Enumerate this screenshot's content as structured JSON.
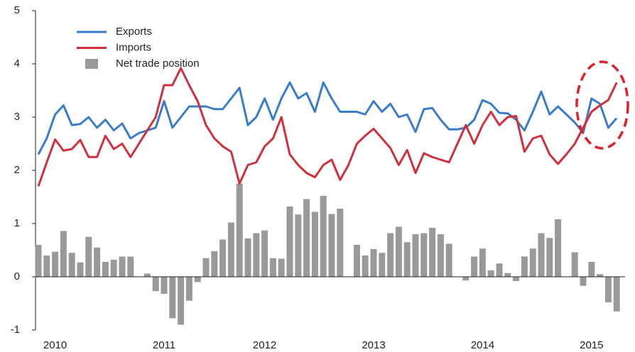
{
  "chart_data": {
    "type": "bar-line",
    "categories": [
      null,
      null,
      "2010",
      null,
      null,
      null,
      null,
      null,
      null,
      null,
      null,
      null,
      null,
      null,
      null,
      "2011",
      null,
      null,
      null,
      null,
      null,
      null,
      null,
      null,
      null,
      null,
      null,
      "2012",
      null,
      null,
      null,
      null,
      null,
      null,
      null,
      null,
      null,
      null,
      null,
      null,
      "2013",
      null,
      null,
      null,
      null,
      null,
      null,
      null,
      null,
      null,
      null,
      null,
      null,
      "2014",
      null,
      null,
      null,
      null,
      null,
      null,
      null,
      null,
      null,
      null,
      null,
      null,
      "2015",
      null,
      null,
      null
    ],
    "series": [
      {
        "name": "Net trade position",
        "kind": "bar",
        "color": "#999999",
        "values": [
          0.6,
          0.4,
          0.47,
          0.86,
          0.45,
          0.27,
          0.75,
          0.55,
          0.28,
          0.32,
          0.38,
          0.38,
          0,
          0.06,
          -0.27,
          -0.32,
          -0.78,
          -0.9,
          -0.45,
          -0.1,
          0.35,
          0.48,
          0.7,
          1.02,
          1.75,
          0.72,
          0.82,
          0.87,
          0.35,
          0.34,
          1.32,
          1.17,
          1.46,
          1.22,
          1.52,
          1.18,
          1.28,
          0,
          0.6,
          0.4,
          0.52,
          0.45,
          0.82,
          0.94,
          0.65,
          0.8,
          0.82,
          0.92,
          0.8,
          0.62,
          0,
          -0.07,
          0.38,
          0.53,
          0.12,
          0.25,
          0.07,
          -0.08,
          0.38,
          0.53,
          0.82,
          0.73,
          1.08,
          0,
          0.46,
          -0.17,
          0.28,
          0.05,
          -0.48,
          -0.65
        ]
      },
      {
        "name": "Exports",
        "kind": "line",
        "color": "#3a7cc8",
        "values": [
          2.3,
          2.6,
          3.05,
          3.22,
          2.85,
          2.87,
          3.0,
          2.8,
          2.95,
          2.75,
          2.88,
          2.6,
          2.7,
          2.75,
          2.8,
          3.3,
          2.8,
          3.0,
          3.2,
          3.2,
          3.2,
          3.15,
          3.15,
          3.35,
          3.55,
          2.85,
          3.0,
          3.35,
          2.95,
          3.35,
          3.65,
          3.35,
          3.45,
          3.1,
          3.65,
          3.35,
          3.1,
          3.1,
          3.1,
          3.05,
          3.3,
          3.1,
          3.25,
          3.0,
          3.05,
          2.72,
          3.15,
          3.17,
          2.95,
          2.77,
          2.77,
          2.8,
          2.95,
          3.32,
          3.25,
          3.08,
          3.07,
          2.95,
          2.75,
          3.1,
          3.48,
          3.05,
          3.2,
          3.05,
          2.9,
          2.7,
          3.35,
          3.25,
          2.8,
          2.98
        ]
      },
      {
        "name": "Imports",
        "kind": "line",
        "color": "#d0303c",
        "values": [
          1.7,
          2.15,
          2.58,
          2.37,
          2.4,
          2.57,
          2.25,
          2.25,
          2.65,
          2.4,
          2.5,
          2.25,
          2.5,
          2.75,
          3.0,
          3.6,
          3.6,
          3.92,
          3.6,
          3.3,
          2.85,
          2.6,
          2.45,
          2.35,
          1.75,
          2.1,
          2.15,
          2.45,
          2.6,
          3.0,
          2.3,
          2.1,
          1.95,
          1.87,
          2.1,
          2.2,
          1.82,
          2.1,
          2.5,
          2.65,
          2.78,
          2.6,
          2.42,
          2.1,
          2.38,
          1.95,
          2.32,
          2.25,
          2.2,
          2.15,
          2.5,
          2.85,
          2.5,
          2.85,
          3.1,
          2.85,
          3.0,
          3.02,
          2.35,
          2.6,
          2.65,
          2.3,
          2.12,
          2.3,
          2.5,
          2.8,
          3.1,
          3.22,
          3.32,
          3.65
        ]
      }
    ],
    "ylim": [
      -1,
      5
    ],
    "yticks": [
      -1,
      0,
      1,
      2,
      3,
      4,
      5
    ]
  }
}
